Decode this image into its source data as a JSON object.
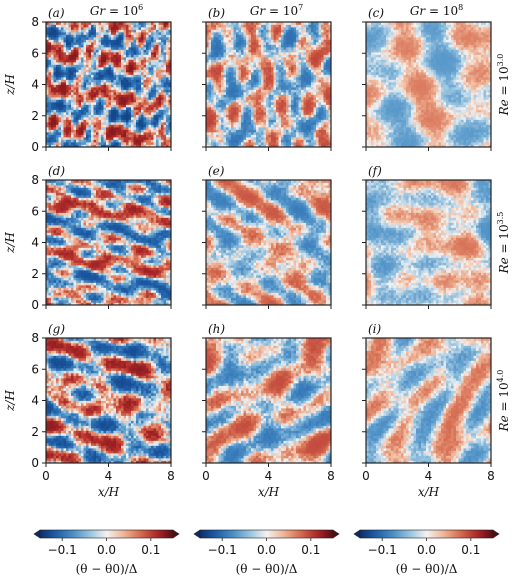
{
  "figure": {
    "colormap": [
      "#0b2d6b",
      "#1f5fa8",
      "#4b8fc6",
      "#98c3df",
      "#f2f2f2",
      "#f0b79a",
      "#d66e52",
      "#b02a2a",
      "#5c0a12"
    ]
  },
  "chart_data": {
    "type": "heatmap",
    "column_titles": [
      "Gr = 10^6",
      "Gr = 10^7",
      "Gr = 10^8"
    ],
    "row_titles": [
      "Re = 10^3.0",
      "Re = 10^3.5",
      "Re = 10^4.0"
    ],
    "panels": [
      {
        "label": "(a)",
        "row": 0,
        "col": 0,
        "scale": 5,
        "amp": 0.135,
        "seed": 11
      },
      {
        "label": "(b)",
        "row": 0,
        "col": 1,
        "scale": 3.2,
        "amp": 0.1,
        "seed": 12
      },
      {
        "label": "(c)",
        "row": 0,
        "col": 2,
        "scale": 2.2,
        "amp": 0.07,
        "seed": 13
      },
      {
        "label": "(d)",
        "row": 1,
        "col": 0,
        "scale": 4,
        "amp": 0.125,
        "seed": 21
      },
      {
        "label": "(e)",
        "row": 1,
        "col": 1,
        "scale": 2.6,
        "amp": 0.09,
        "seed": 22
      },
      {
        "label": "(f)",
        "row": 1,
        "col": 2,
        "scale": 2.0,
        "amp": 0.075,
        "seed": 23
      },
      {
        "label": "(g)",
        "row": 2,
        "col": 0,
        "scale": 2.4,
        "amp": 0.13,
        "seed": 31
      },
      {
        "label": "(h)",
        "row": 2,
        "col": 1,
        "scale": 2.2,
        "amp": 0.095,
        "seed": 32
      },
      {
        "label": "(i)",
        "row": 2,
        "col": 2,
        "scale": 2.0,
        "amp": 0.08,
        "seed": 33
      }
    ],
    "xlabel": "x/H",
    "ylabel": "z/H",
    "xlim": [
      0,
      8
    ],
    "ylim": [
      0,
      8
    ],
    "xticks": [
      "0",
      "4",
      "8"
    ],
    "yticks": [
      "0",
      "2",
      "4",
      "6",
      "8"
    ],
    "colorbar": {
      "label": "(θ − θ0)/Δ",
      "range": [
        -0.15,
        0.15
      ],
      "ticks": [
        "−0.1",
        "0.0",
        "0.1"
      ],
      "tick_values": [
        -0.1,
        0.0,
        0.1
      ]
    }
  }
}
